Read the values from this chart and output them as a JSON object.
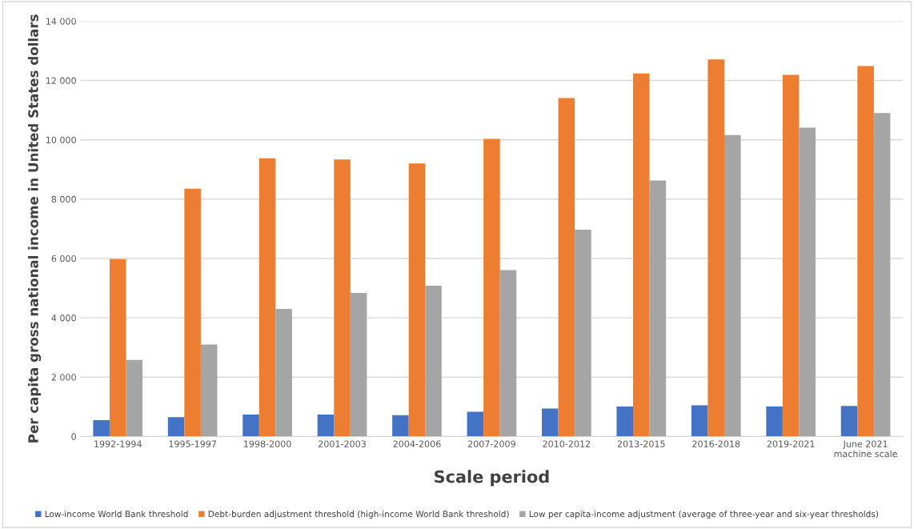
{
  "chart_data": {
    "type": "bar",
    "xlabel": "Scale period",
    "ylabel": "Per capita gross national income in United States dollars",
    "categories": [
      "1992-1994",
      "1995-1997",
      "1998-2000",
      "2001-2003",
      "2004-2006",
      "2007-2009",
      "2010-2012",
      "2013-2015",
      "2016-2018",
      "2019-2021",
      "June 2021\nmachine scale"
    ],
    "series": [
      {
        "name": "Low-income World Bank threshold",
        "color": "#4472c4",
        "values": [
          550,
          650,
          740,
          740,
          720,
          830,
          940,
          1010,
          1050,
          1010,
          1030
        ]
      },
      {
        "name": "Debt-burden adjustment threshold (high-income World Bank threshold)",
        "color": "#ed7d31",
        "values": [
          5980,
          8350,
          9380,
          9340,
          9200,
          10030,
          11410,
          12240,
          12710,
          12190,
          12490
        ]
      },
      {
        "name": "Low per capita-income adjustment (average of three-year and six-year thresholds)",
        "color": "#a5a5a5",
        "values": [
          2580,
          3100,
          4300,
          4840,
          5080,
          5610,
          6970,
          8630,
          10160,
          10410,
          10900
        ]
      }
    ],
    "ylim": [
      0,
      14000
    ],
    "yticks": [
      0,
      {
        "value": 2000,
        "label": "2 000"
      },
      {
        "value": 4000,
        "label": "4 000"
      },
      {
        "value": 6000,
        "label": "6 000"
      },
      {
        "value": 8000,
        "label": "8 000"
      },
      {
        "value": 10000,
        "label": "10 000"
      },
      {
        "value": 12000,
        "label": "12 000"
      },
      {
        "value": 14000,
        "label": "14 000"
      }
    ],
    "grid": "y",
    "legend": "bottom"
  }
}
